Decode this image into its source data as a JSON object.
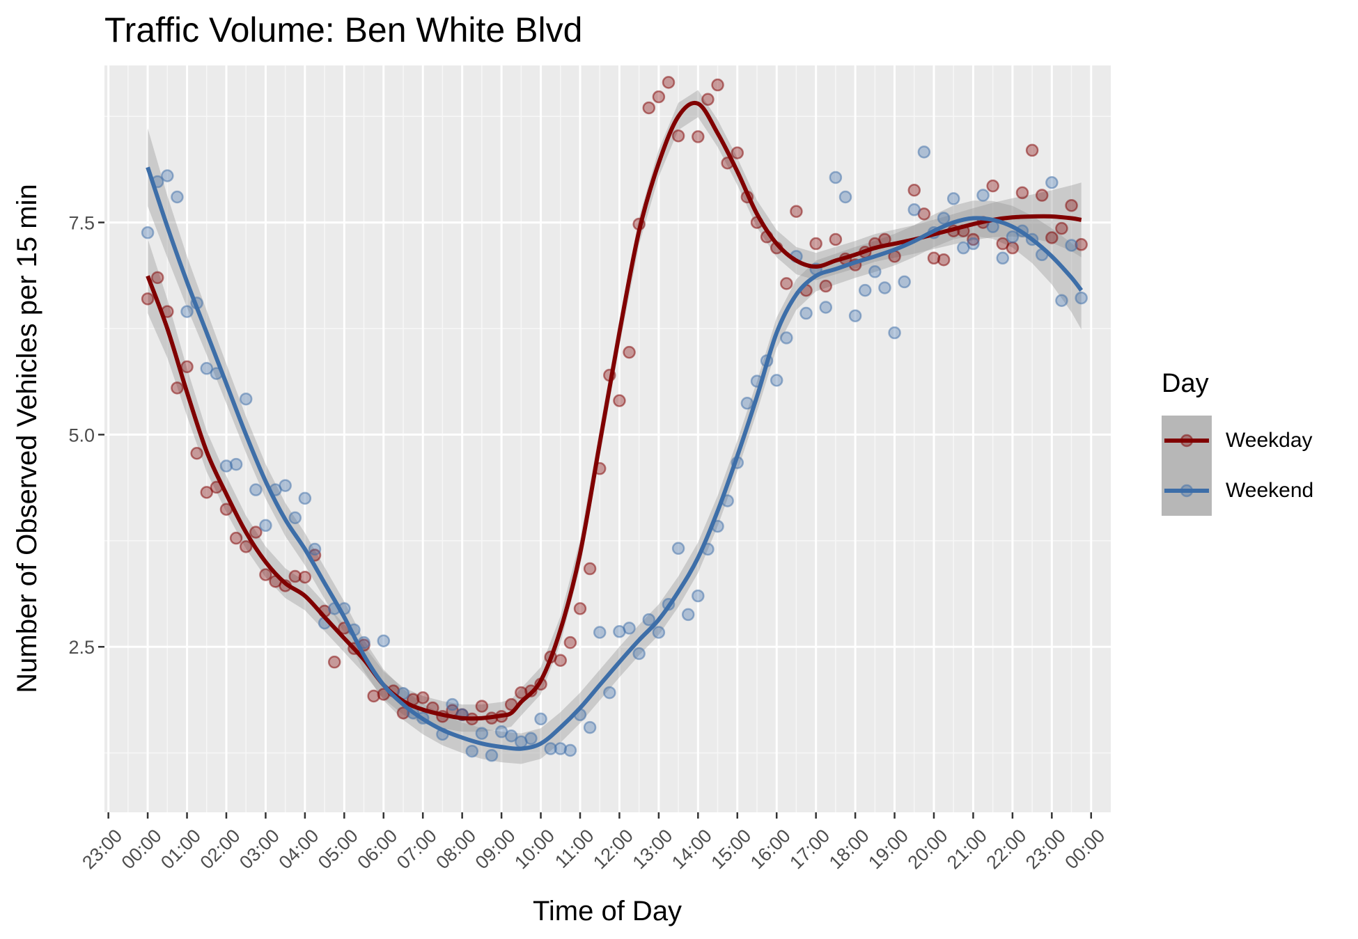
{
  "chart_data": {
    "type": "scatter",
    "title": "Traffic Volume: Ben White Blvd",
    "xlabel": "Time of Day",
    "ylabel": "Number of Observed Vehicles per 15 min",
    "x_unit": "hours from 00:00",
    "xlim": [
      -1.1,
      24.5
    ],
    "ylim": [
      0.55,
      9.35
    ],
    "x_ticks": [
      -1,
      0,
      1,
      2,
      3,
      4,
      5,
      6,
      7,
      8,
      9,
      10,
      11,
      12,
      13,
      14,
      15,
      16,
      17,
      18,
      19,
      20,
      21,
      22,
      23,
      24
    ],
    "x_tick_labels": [
      "23:00",
      "00:00",
      "01:00",
      "02:00",
      "03:00",
      "04:00",
      "05:00",
      "06:00",
      "07:00",
      "08:00",
      "09:00",
      "10:00",
      "11:00",
      "12:00",
      "13:00",
      "14:00",
      "15:00",
      "16:00",
      "17:00",
      "18:00",
      "19:00",
      "20:00",
      "21:00",
      "22:00",
      "23:00",
      "00:00"
    ],
    "y_ticks": [
      2.5,
      5.0,
      7.5
    ],
    "y_tick_labels": [
      "2.5",
      "5.0",
      "7.5"
    ],
    "y_minor": [
      1.25,
      3.75,
      6.25,
      8.75
    ],
    "grid": true,
    "legend": {
      "title": "Day",
      "position": "right",
      "entries": [
        "Weekday",
        "Weekend"
      ]
    },
    "series": [
      {
        "name": "Weekday",
        "color": "#800000",
        "points": [
          [
            0,
            6.6
          ],
          [
            0.25,
            6.85
          ],
          [
            0.5,
            6.45
          ],
          [
            0.75,
            5.55
          ],
          [
            1,
            5.8
          ],
          [
            1.25,
            4.78
          ],
          [
            1.5,
            4.32
          ],
          [
            1.75,
            4.38
          ],
          [
            2,
            4.12
          ],
          [
            2.25,
            3.78
          ],
          [
            2.5,
            3.68
          ],
          [
            2.75,
            3.85
          ],
          [
            3,
            3.35
          ],
          [
            3.25,
            3.27
          ],
          [
            3.5,
            3.22
          ],
          [
            3.75,
            3.33
          ],
          [
            4,
            3.32
          ],
          [
            4.25,
            3.58
          ],
          [
            4.5,
            2.92
          ],
          [
            4.75,
            2.32
          ],
          [
            5,
            2.72
          ],
          [
            5.25,
            2.48
          ],
          [
            5.5,
            2.52
          ],
          [
            5.75,
            1.92
          ],
          [
            6,
            1.94
          ],
          [
            6.25,
            1.98
          ],
          [
            6.5,
            1.72
          ],
          [
            6.75,
            1.88
          ],
          [
            7,
            1.9
          ],
          [
            7.25,
            1.78
          ],
          [
            7.5,
            1.68
          ],
          [
            7.75,
            1.75
          ],
          [
            8,
            1.7
          ],
          [
            8.25,
            1.65
          ],
          [
            8.5,
            1.8
          ],
          [
            8.75,
            1.66
          ],
          [
            9,
            1.68
          ],
          [
            9.25,
            1.82
          ],
          [
            9.5,
            1.96
          ],
          [
            9.75,
            1.98
          ],
          [
            10,
            2.06
          ],
          [
            10.25,
            2.38
          ],
          [
            10.5,
            2.34
          ],
          [
            10.75,
            2.55
          ],
          [
            11,
            2.95
          ],
          [
            11.25,
            3.42
          ],
          [
            11.5,
            4.6
          ],
          [
            11.75,
            5.7
          ],
          [
            12,
            5.4
          ],
          [
            12.25,
            5.97
          ],
          [
            12.5,
            7.48
          ],
          [
            12.75,
            8.85
          ],
          [
            13,
            8.98
          ],
          [
            13.25,
            9.15
          ],
          [
            13.5,
            8.52
          ],
          [
            14,
            8.51
          ],
          [
            14.25,
            8.95
          ],
          [
            14.5,
            9.12
          ],
          [
            14.75,
            8.2
          ],
          [
            15,
            8.32
          ],
          [
            15.25,
            7.8
          ],
          [
            15.5,
            7.5
          ],
          [
            15.75,
            7.33
          ],
          [
            16,
            7.2
          ],
          [
            16.25,
            6.78
          ],
          [
            16.5,
            7.63
          ],
          [
            16.75,
            6.7
          ],
          [
            17,
            7.25
          ],
          [
            17.25,
            6.75
          ],
          [
            17.5,
            7.3
          ],
          [
            17.75,
            7.07
          ],
          [
            18,
            7.0
          ],
          [
            18.25,
            7.15
          ],
          [
            18.5,
            7.25
          ],
          [
            18.75,
            7.3
          ],
          [
            19,
            7.1
          ],
          [
            19.5,
            7.88
          ],
          [
            19.75,
            7.6
          ],
          [
            20,
            7.08
          ],
          [
            20.25,
            7.06
          ],
          [
            20.5,
            7.4
          ],
          [
            20.75,
            7.4
          ],
          [
            21,
            7.3
          ],
          [
            21.25,
            7.5
          ],
          [
            21.5,
            7.93
          ],
          [
            21.75,
            7.25
          ],
          [
            22,
            7.2
          ],
          [
            22.25,
            7.85
          ],
          [
            22.5,
            8.35
          ],
          [
            22.75,
            7.82
          ],
          [
            23,
            7.32
          ],
          [
            23.25,
            7.43
          ],
          [
            23.5,
            7.7
          ],
          [
            23.75,
            7.24
          ]
        ],
        "smooth": [
          [
            0,
            6.87
          ],
          [
            0.5,
            6.25
          ],
          [
            1,
            5.5
          ],
          [
            1.5,
            4.8
          ],
          [
            2,
            4.3
          ],
          [
            2.5,
            3.85
          ],
          [
            3,
            3.5
          ],
          [
            3.5,
            3.25
          ],
          [
            4,
            3.1
          ],
          [
            4.5,
            2.85
          ],
          [
            5,
            2.6
          ],
          [
            5.5,
            2.35
          ],
          [
            6,
            2.05
          ],
          [
            6.5,
            1.86
          ],
          [
            7,
            1.76
          ],
          [
            7.5,
            1.7
          ],
          [
            8,
            1.66
          ],
          [
            8.5,
            1.66
          ],
          [
            9,
            1.69
          ],
          [
            9.25,
            1.72
          ],
          [
            9.5,
            1.85
          ],
          [
            10,
            2.1
          ],
          [
            10.5,
            2.7
          ],
          [
            11,
            3.6
          ],
          [
            11.5,
            4.9
          ],
          [
            12,
            6.2
          ],
          [
            12.5,
            7.4
          ],
          [
            13,
            8.2
          ],
          [
            13.5,
            8.75
          ],
          [
            14,
            8.9
          ],
          [
            14.5,
            8.55
          ],
          [
            15,
            8.1
          ],
          [
            15.5,
            7.6
          ],
          [
            16,
            7.25
          ],
          [
            16.5,
            7.05
          ],
          [
            17,
            6.98
          ],
          [
            17.5,
            7.05
          ],
          [
            18,
            7.12
          ],
          [
            18.5,
            7.2
          ],
          [
            19,
            7.25
          ],
          [
            19.5,
            7.3
          ],
          [
            20,
            7.36
          ],
          [
            20.5,
            7.42
          ],
          [
            21,
            7.48
          ],
          [
            21.5,
            7.53
          ],
          [
            22,
            7.56
          ],
          [
            22.5,
            7.57
          ],
          [
            23,
            7.57
          ],
          [
            23.5,
            7.55
          ],
          [
            23.75,
            7.53
          ]
        ]
      },
      {
        "name": "Weekend",
        "color": "#3d6ea8",
        "points": [
          [
            0,
            7.38
          ],
          [
            0.25,
            7.98
          ],
          [
            0.5,
            8.05
          ],
          [
            0.75,
            7.8
          ],
          [
            1,
            6.45
          ],
          [
            1.25,
            6.55
          ],
          [
            1.5,
            5.78
          ],
          [
            1.75,
            5.72
          ],
          [
            2,
            4.63
          ],
          [
            2.25,
            4.65
          ],
          [
            2.5,
            5.42
          ],
          [
            2.75,
            4.35
          ],
          [
            3,
            3.93
          ],
          [
            3.25,
            4.35
          ],
          [
            3.5,
            4.4
          ],
          [
            3.75,
            4.02
          ],
          [
            4,
            4.25
          ],
          [
            4.25,
            3.65
          ],
          [
            4.5,
            2.78
          ],
          [
            4.75,
            2.95
          ],
          [
            5,
            2.95
          ],
          [
            5.25,
            2.7
          ],
          [
            5.5,
            2.55
          ],
          [
            6,
            2.57
          ],
          [
            6.5,
            1.95
          ],
          [
            6.75,
            1.72
          ],
          [
            7,
            1.66
          ],
          [
            7.5,
            1.47
          ],
          [
            7.75,
            1.82
          ],
          [
            8,
            1.7
          ],
          [
            8.25,
            1.27
          ],
          [
            8.5,
            1.48
          ],
          [
            8.75,
            1.22
          ],
          [
            9,
            1.5
          ],
          [
            9.25,
            1.45
          ],
          [
            9.5,
            1.38
          ],
          [
            9.75,
            1.42
          ],
          [
            10,
            1.65
          ],
          [
            10.25,
            1.3
          ],
          [
            10.5,
            1.3
          ],
          [
            10.75,
            1.28
          ],
          [
            11,
            1.7
          ],
          [
            11.25,
            1.55
          ],
          [
            11.5,
            2.67
          ],
          [
            11.75,
            1.96
          ],
          [
            12,
            2.68
          ],
          [
            12.25,
            2.72
          ],
          [
            12.5,
            2.42
          ],
          [
            12.75,
            2.82
          ],
          [
            13,
            2.67
          ],
          [
            13.25,
            3.0
          ],
          [
            13.5,
            3.66
          ],
          [
            13.75,
            2.88
          ],
          [
            14,
            3.1
          ],
          [
            14.25,
            3.65
          ],
          [
            14.5,
            3.92
          ],
          [
            14.75,
            4.22
          ],
          [
            15,
            4.67
          ],
          [
            15.25,
            5.37
          ],
          [
            15.5,
            5.63
          ],
          [
            15.75,
            5.87
          ],
          [
            16,
            5.64
          ],
          [
            16.25,
            6.14
          ],
          [
            16.5,
            7.1
          ],
          [
            16.75,
            6.43
          ],
          [
            17,
            6.95
          ],
          [
            17.25,
            6.5
          ],
          [
            17.5,
            8.03
          ],
          [
            17.75,
            7.8
          ],
          [
            18,
            6.4
          ],
          [
            18.25,
            6.7
          ],
          [
            18.5,
            6.92
          ],
          [
            18.75,
            6.73
          ],
          [
            19,
            6.2
          ],
          [
            19.25,
            6.8
          ],
          [
            19.5,
            7.65
          ],
          [
            19.75,
            8.33
          ],
          [
            20,
            7.38
          ],
          [
            20.25,
            7.55
          ],
          [
            20.5,
            7.78
          ],
          [
            20.75,
            7.2
          ],
          [
            21,
            7.25
          ],
          [
            21.25,
            7.82
          ],
          [
            21.5,
            7.45
          ],
          [
            21.75,
            7.08
          ],
          [
            22,
            7.33
          ],
          [
            22.25,
            7.4
          ],
          [
            22.5,
            7.3
          ],
          [
            22.75,
            7.12
          ],
          [
            23,
            7.97
          ],
          [
            23.25,
            6.58
          ],
          [
            23.5,
            7.23
          ],
          [
            23.75,
            6.61
          ]
        ],
        "smooth": [
          [
            0,
            8.15
          ],
          [
            0.5,
            7.45
          ],
          [
            1,
            6.8
          ],
          [
            1.5,
            6.2
          ],
          [
            2,
            5.6
          ],
          [
            2.5,
            5.0
          ],
          [
            3,
            4.45
          ],
          [
            3.5,
            4.0
          ],
          [
            4,
            3.65
          ],
          [
            4.5,
            3.25
          ],
          [
            5,
            2.85
          ],
          [
            5.5,
            2.4
          ],
          [
            6,
            2.05
          ],
          [
            6.5,
            1.82
          ],
          [
            7,
            1.65
          ],
          [
            7.5,
            1.52
          ],
          [
            8,
            1.43
          ],
          [
            8.5,
            1.36
          ],
          [
            9,
            1.32
          ],
          [
            9.5,
            1.3
          ],
          [
            10,
            1.36
          ],
          [
            10.5,
            1.55
          ],
          [
            11,
            1.78
          ],
          [
            11.5,
            2.05
          ],
          [
            12,
            2.32
          ],
          [
            12.5,
            2.58
          ],
          [
            13,
            2.82
          ],
          [
            13.5,
            3.15
          ],
          [
            14,
            3.55
          ],
          [
            14.5,
            4.1
          ],
          [
            15,
            4.75
          ],
          [
            15.5,
            5.45
          ],
          [
            16,
            6.2
          ],
          [
            16.5,
            6.65
          ],
          [
            17,
            6.87
          ],
          [
            17.5,
            6.95
          ],
          [
            18,
            7.03
          ],
          [
            18.5,
            7.1
          ],
          [
            19,
            7.18
          ],
          [
            19.5,
            7.28
          ],
          [
            20,
            7.4
          ],
          [
            20.5,
            7.5
          ],
          [
            21,
            7.55
          ],
          [
            21.5,
            7.53
          ],
          [
            22,
            7.45
          ],
          [
            22.5,
            7.3
          ],
          [
            23,
            7.1
          ],
          [
            23.5,
            6.85
          ],
          [
            23.75,
            6.7
          ]
        ]
      }
    ]
  }
}
